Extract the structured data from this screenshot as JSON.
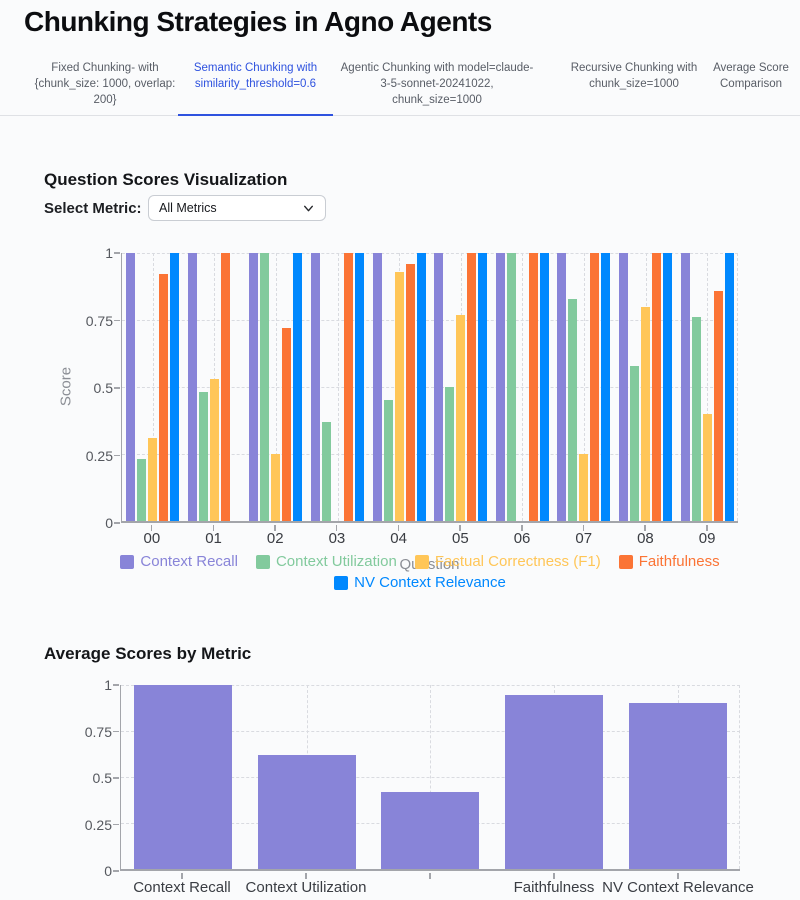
{
  "page": {
    "title": "Chunking Strategies in Agno Agents"
  },
  "tabs": [
    {
      "label": "Fixed Chunking- with {chunk_size: 1000, overlap: 200}",
      "active": false
    },
    {
      "label": "Semantic Chunking with similarity_threshold=0.6",
      "active": true
    },
    {
      "label": "Agentic Chunking with model=claude-3-5-sonnet-20241022, chunk_size=1000",
      "active": false
    },
    {
      "label": "Recursive Chunking with chunk_size=1000",
      "active": false
    },
    {
      "label": "Average Score Comparison",
      "active": false
    }
  ],
  "colors": {
    "accent_tab": "#2e52df",
    "context_recall": "#8884d8",
    "context_utilization": "#82ca9d",
    "factual_correctness": "#ffc658",
    "faithfulness": "#fb7435",
    "nv_context_relevance": "#0088fe"
  },
  "section1": {
    "heading": "Question Scores Visualization",
    "metric_label": "Select Metric:",
    "metric_value": "All Metrics"
  },
  "section2": {
    "heading": "Average Scores by Metric"
  },
  "chart_data": [
    {
      "type": "bar",
      "title": "Question Scores Visualization",
      "categories": [
        "00",
        "01",
        "02",
        "03",
        "04",
        "05",
        "06",
        "07",
        "08",
        "09"
      ],
      "series": [
        {
          "name": "Context Recall",
          "color": "#8884d8",
          "values": [
            1,
            1,
            1,
            1,
            1,
            1,
            1,
            1,
            1,
            1
          ]
        },
        {
          "name": "Context Utilization",
          "color": "#82ca9d",
          "values": [
            0.23,
            0.48,
            1,
            0.37,
            0.45,
            0.5,
            1,
            0.83,
            0.58,
            0.76
          ]
        },
        {
          "name": "Factual Correctness (F1)",
          "color": "#ffc658",
          "values": [
            0.31,
            0.53,
            0.25,
            0,
            0.93,
            0.77,
            0,
            0.25,
            0.8,
            0.4
          ]
        },
        {
          "name": "Faithfulness",
          "color": "#fb7435",
          "values": [
            0.92,
            1,
            0.72,
            1,
            0.96,
            1,
            1,
            1,
            1,
            0.86
          ]
        },
        {
          "name": "NV Context Relevance",
          "color": "#0088fe",
          "values": [
            1,
            0,
            1,
            1,
            1,
            1,
            1,
            1,
            1,
            1
          ]
        }
      ],
      "xlabel": "Question",
      "ylabel": "Score",
      "ylim": [
        0,
        1
      ],
      "ytick_labels": [
        "1",
        "0.75",
        "0.5",
        "0.25",
        "0"
      ],
      "grid": true,
      "legend_position": "bottom"
    },
    {
      "type": "bar",
      "title": "Average Scores by Metric",
      "categories": [
        "Context Recall",
        "Context Utilization",
        "",
        "Faithfulness",
        "NV Context Relevance"
      ],
      "values": [
        1,
        0.62,
        0.42,
        0.945,
        0.9
      ],
      "bar_color": "#8884d8",
      "xlabel": "",
      "ylabel": "",
      "ylim": [
        0,
        1
      ],
      "ytick_labels": [
        "1",
        "0.75",
        "0.5",
        "0.25",
        "0"
      ],
      "grid": true,
      "legend_position": "none"
    }
  ]
}
